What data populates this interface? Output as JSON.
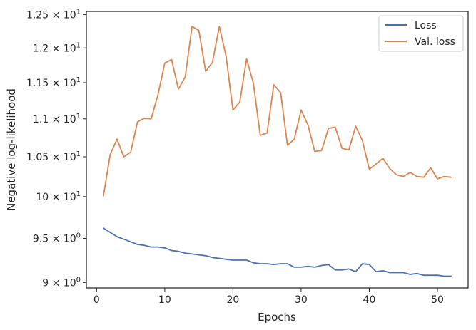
{
  "chart_data": {
    "type": "line",
    "title": "",
    "xlabel": "Epochs",
    "ylabel": "Negative log-likelihood",
    "yscale": "log",
    "grid": false,
    "legend_position": "top-right",
    "xlim": [
      -1.5,
      54.5
    ],
    "ylim": [
      8.94,
      12.55
    ],
    "x_ticks": [
      {
        "value": 0,
        "label": "0"
      },
      {
        "value": 10,
        "label": "10"
      },
      {
        "value": 20,
        "label": "20"
      },
      {
        "value": 30,
        "label": "30"
      },
      {
        "value": 40,
        "label": "40"
      },
      {
        "value": 50,
        "label": "50"
      }
    ],
    "y_ticks": [
      {
        "value": 9.0,
        "base": "9",
        "exp": "0"
      },
      {
        "value": 9.5,
        "base": "9.5",
        "exp": "0"
      },
      {
        "value": 10.0,
        "base": "10",
        "exp": "1"
      },
      {
        "value": 10.5,
        "base": "1.05",
        "exp": "1"
      },
      {
        "value": 11.0,
        "base": "1.1",
        "exp": "1"
      },
      {
        "value": 11.5,
        "base": "1.15",
        "exp": "1"
      },
      {
        "value": 12.0,
        "base": "1.2",
        "exp": "1"
      },
      {
        "value": 12.5,
        "base": "1.25",
        "exp": "1"
      }
    ],
    "x": [
      1,
      2,
      3,
      4,
      5,
      6,
      7,
      8,
      9,
      10,
      11,
      12,
      13,
      14,
      15,
      16,
      17,
      18,
      19,
      20,
      21,
      22,
      23,
      24,
      25,
      26,
      27,
      28,
      29,
      30,
      31,
      32,
      33,
      34,
      35,
      36,
      37,
      38,
      39,
      40,
      41,
      42,
      43,
      44,
      45,
      46,
      47,
      48,
      49,
      50,
      51,
      52
    ],
    "series": [
      {
        "name": "Loss",
        "color": "#4c72b0",
        "values": [
          9.62,
          9.57,
          9.52,
          9.49,
          9.46,
          9.43,
          9.42,
          9.4,
          9.4,
          9.39,
          9.36,
          9.35,
          9.33,
          9.32,
          9.31,
          9.3,
          9.28,
          9.27,
          9.26,
          9.25,
          9.25,
          9.25,
          9.22,
          9.21,
          9.21,
          9.2,
          9.21,
          9.21,
          9.17,
          9.17,
          9.18,
          9.17,
          9.19,
          9.2,
          9.14,
          9.14,
          9.15,
          9.12,
          9.21,
          9.2,
          9.12,
          9.13,
          9.11,
          9.11,
          9.11,
          9.09,
          9.1,
          9.08,
          9.08,
          9.08,
          9.07,
          9.07
        ]
      },
      {
        "name": "Val. loss",
        "color": "#dd8452",
        "values": [
          10.01,
          10.53,
          10.73,
          10.5,
          10.56,
          10.96,
          11.01,
          11.0,
          11.33,
          11.78,
          11.83,
          11.41,
          11.58,
          12.32,
          12.26,
          11.66,
          11.79,
          12.32,
          11.88,
          11.12,
          11.23,
          11.84,
          11.49,
          10.78,
          10.81,
          11.47,
          11.36,
          10.65,
          10.73,
          11.12,
          10.92,
          10.57,
          10.58,
          10.87,
          10.89,
          10.61,
          10.59,
          10.9,
          10.71,
          10.34,
          10.41,
          10.48,
          10.35,
          10.27,
          10.25,
          10.3,
          10.25,
          10.24,
          10.36,
          10.22,
          10.25,
          10.24
        ]
      }
    ]
  }
}
